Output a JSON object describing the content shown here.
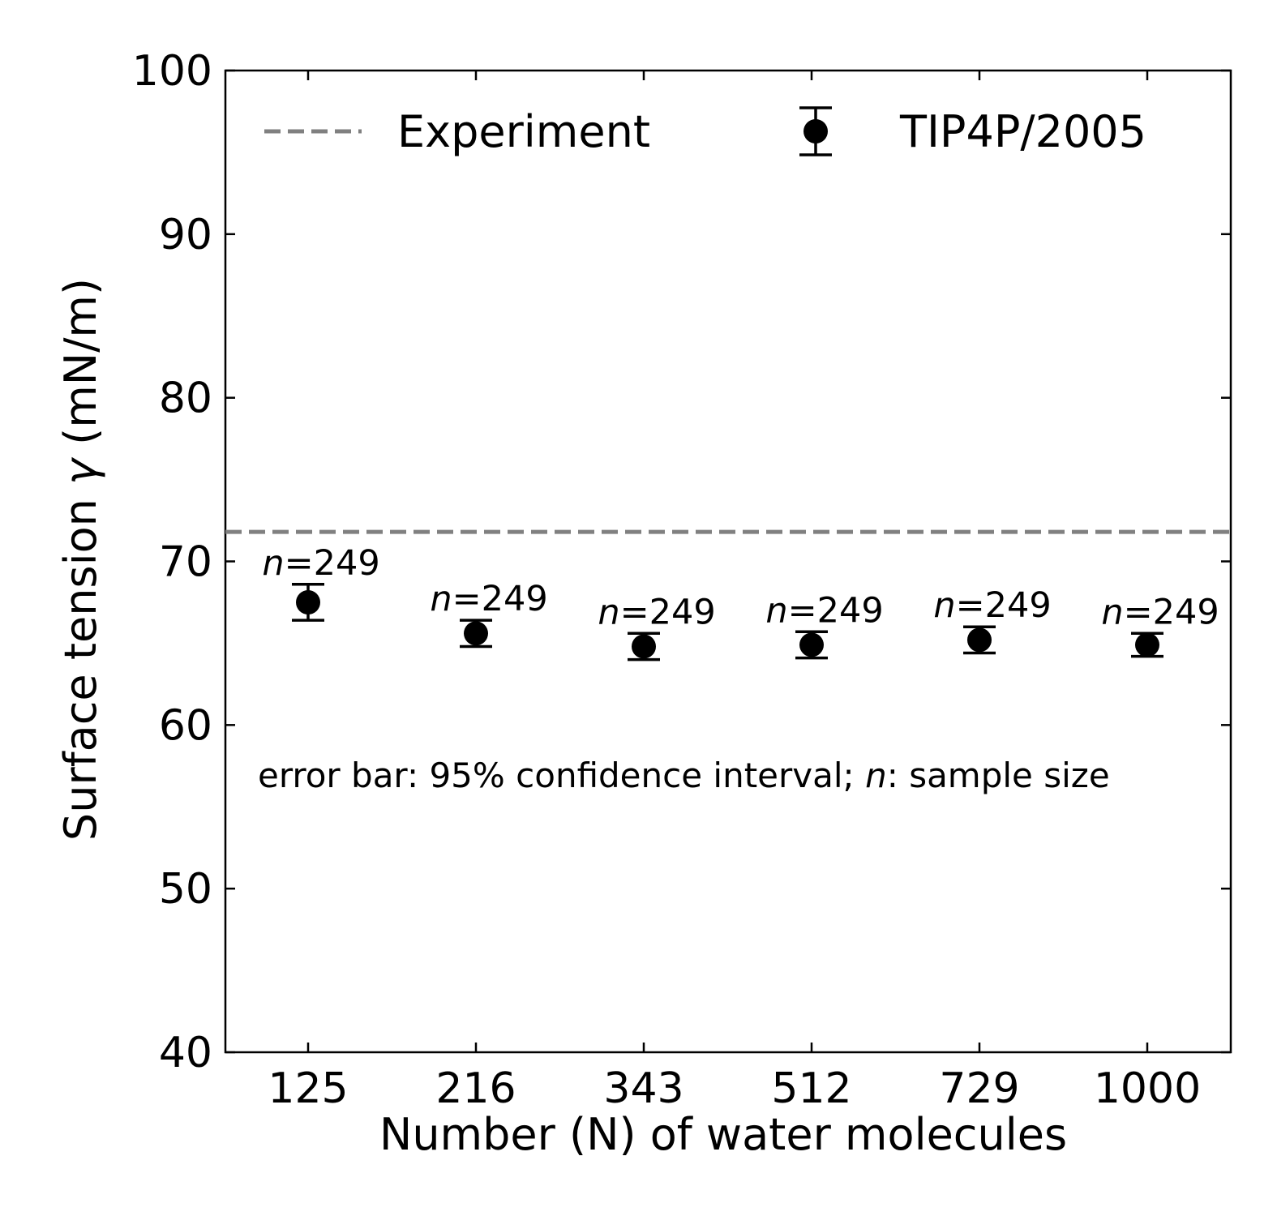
{
  "chart_data": {
    "type": "scatter",
    "xlabel": "Number (N) of water molecules",
    "ylabel_prefix": "Surface tension ",
    "ylabel_symbol": "γ",
    "ylabel_suffix": " (mN/m)",
    "ylim": [
      40,
      100
    ],
    "y_ticks": [
      40,
      50,
      60,
      70,
      80,
      90,
      100
    ],
    "categories": [
      "125",
      "216",
      "343",
      "512",
      "729",
      "1000"
    ],
    "series": [
      {
        "name": "TIP4P/2005",
        "color": "#000000",
        "values": [
          67.5,
          65.6,
          64.8,
          64.9,
          65.2,
          64.9
        ],
        "error_low": [
          66.4,
          64.8,
          64.0,
          64.1,
          64.4,
          64.2
        ],
        "error_high": [
          68.6,
          66.4,
          65.6,
          65.7,
          66.0,
          65.6
        ]
      }
    ],
    "reference_line": {
      "name": "Experiment",
      "value": 71.8,
      "color": "#808080",
      "style": "dashed"
    },
    "sample_labels": {
      "symbol": "n",
      "values": [
        "=249",
        "=249",
        "=249",
        "=249",
        "=249",
        "=249"
      ]
    },
    "annotation": {
      "part1": "error bar: 95% confidence interval; ",
      "symbol": "n",
      "part2": ": sample size"
    },
    "legend_placement": "top",
    "grid": false
  }
}
